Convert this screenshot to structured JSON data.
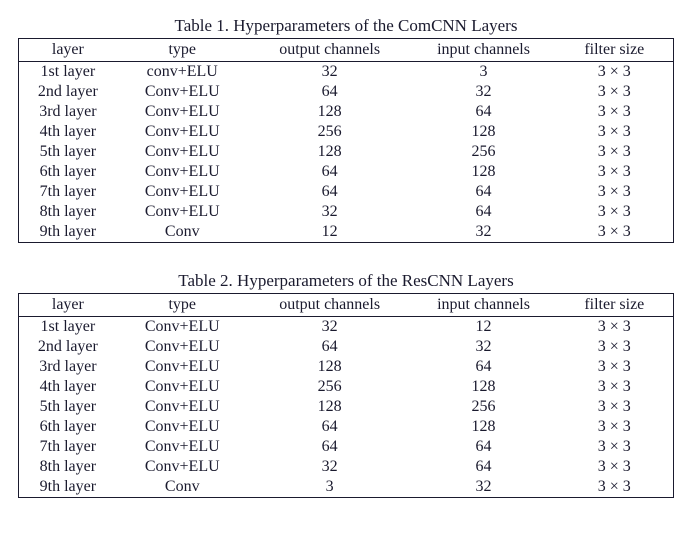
{
  "tables": [
    {
      "caption": "Table 1.  Hyperparameters of the ComCNN Layers",
      "columns": [
        "layer",
        "type",
        "output channels",
        "input channels",
        "filter size"
      ],
      "rows": [
        [
          "1st layer",
          "conv+ELU",
          "32",
          "3",
          "3 × 3"
        ],
        [
          "2nd layer",
          "Conv+ELU",
          "64",
          "32",
          "3 × 3"
        ],
        [
          "3rd layer",
          "Conv+ELU",
          "128",
          "64",
          "3 × 3"
        ],
        [
          "4th layer",
          "Conv+ELU",
          "256",
          "128",
          "3 × 3"
        ],
        [
          "5th layer",
          "Conv+ELU",
          "128",
          "256",
          "3 × 3"
        ],
        [
          "6th layer",
          "Conv+ELU",
          "64",
          "128",
          "3 × 3"
        ],
        [
          "7th layer",
          "Conv+ELU",
          "64",
          "64",
          "3 × 3"
        ],
        [
          "8th layer",
          "Conv+ELU",
          "32",
          "64",
          "3 × 3"
        ],
        [
          "9th layer",
          "Conv",
          "12",
          "32",
          "3 × 3"
        ]
      ],
      "caption_fontsize": 17,
      "body_fontsize": 16,
      "border_color": "#1a1a2e",
      "text_color": "#1a1a2e",
      "background_color": "#ffffff"
    },
    {
      "caption": "Table 2.  Hyperparameters of the ResCNN Layers",
      "columns": [
        "layer",
        "type",
        "output channels",
        "input channels",
        "filter size"
      ],
      "rows": [
        [
          "1st layer",
          "Conv+ELU",
          "32",
          "12",
          "3 × 3"
        ],
        [
          "2nd layer",
          "Conv+ELU",
          "64",
          "32",
          "3 × 3"
        ],
        [
          "3rd layer",
          "Conv+ELU",
          "128",
          "64",
          "3 × 3"
        ],
        [
          "4th layer",
          "Conv+ELU",
          "256",
          "128",
          "3 × 3"
        ],
        [
          "5th layer",
          "Conv+ELU",
          "128",
          "256",
          "3 × 3"
        ],
        [
          "6th layer",
          "Conv+ELU",
          "64",
          "128",
          "3 × 3"
        ],
        [
          "7th layer",
          "Conv+ELU",
          "64",
          "64",
          "3 × 3"
        ],
        [
          "8th layer",
          "Conv+ELU",
          "32",
          "64",
          "3 × 3"
        ],
        [
          "9th layer",
          "Conv",
          "3",
          "32",
          "3 × 3"
        ]
      ],
      "caption_fontsize": 17,
      "body_fontsize": 16,
      "border_color": "#1a1a2e",
      "text_color": "#1a1a2e",
      "background_color": "#ffffff"
    }
  ]
}
